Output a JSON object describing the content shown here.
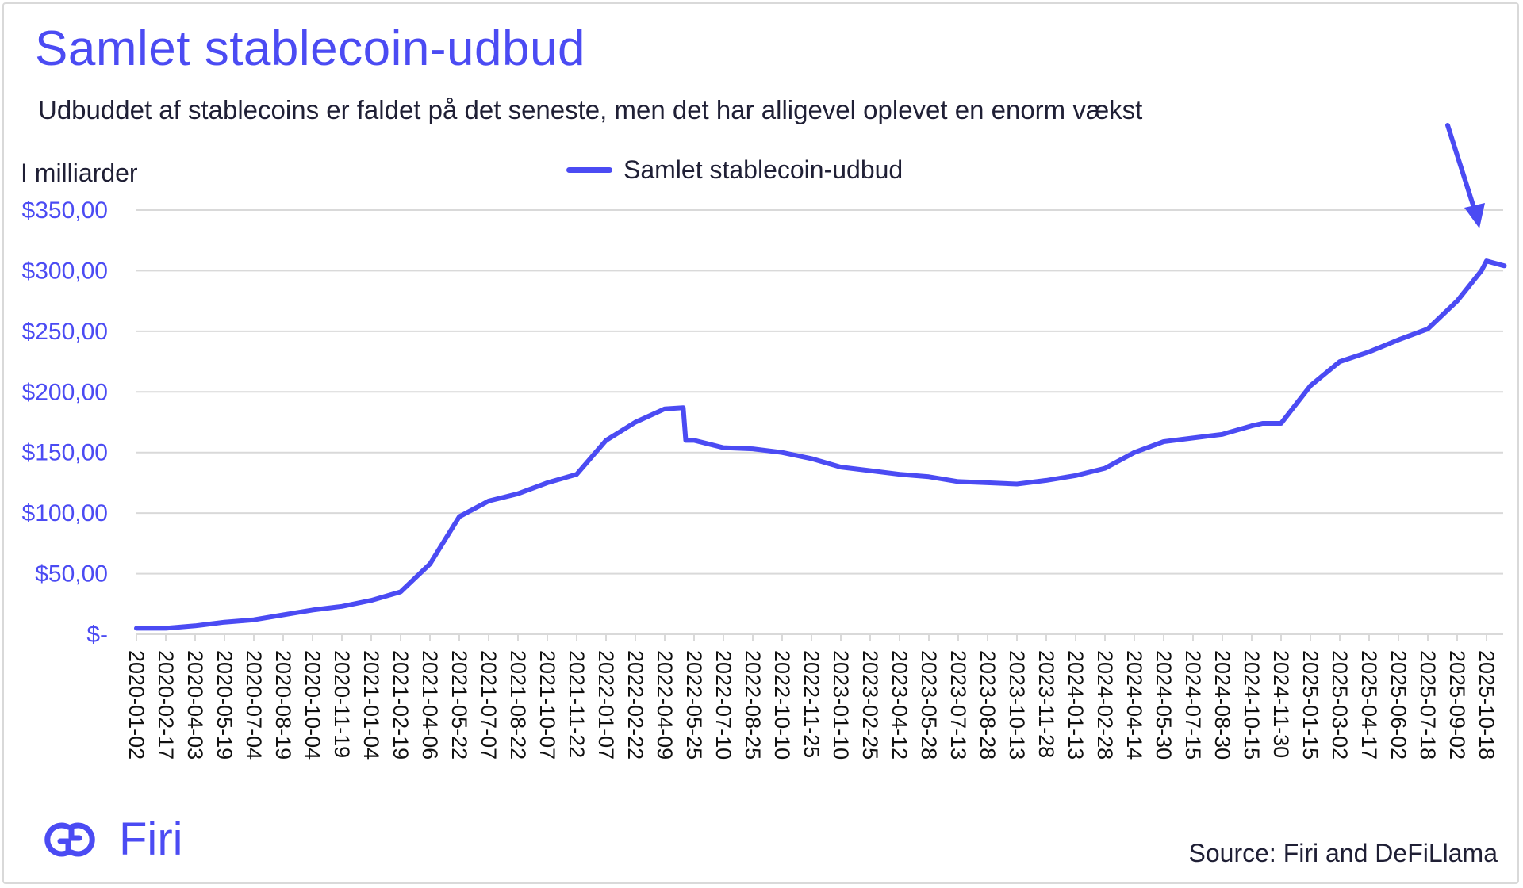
{
  "header": {
    "title": "Samlet stablecoin-udbud",
    "subtitle": "Udbuddet af stablecoins er faldet på det seneste, men det har alligevel oplevet en enorm vækst",
    "unit_label": "I milliarder"
  },
  "footer": {
    "logo_text": "Firi",
    "source": "Source: Firi and DeFiLlama"
  },
  "colors": {
    "accent": "#4b4bf3",
    "text": "#1f1f35",
    "grid": "#d9d9d9"
  },
  "chart_data": {
    "type": "line",
    "title": "Samlet stablecoin-udbud",
    "ylabel": "I milliarder",
    "ylim": [
      0,
      350
    ],
    "ytick_labels": [
      "$-",
      "$50,00",
      "$100,00",
      "$150,00",
      "$200,00",
      "$250,00",
      "$300,00",
      "$350,00"
    ],
    "ytick_values": [
      0,
      50,
      100,
      150,
      200,
      250,
      300,
      350
    ],
    "xtick_labels": [
      "2020-01-02",
      "2020-02-17",
      "2020-04-03",
      "2020-05-19",
      "2020-07-04",
      "2020-08-19",
      "2020-10-04",
      "2020-11-19",
      "2021-01-04",
      "2021-02-19",
      "2021-04-06",
      "2021-05-22",
      "2021-07-07",
      "2021-08-22",
      "2021-10-07",
      "2021-11-22",
      "2022-01-07",
      "2022-02-22",
      "2022-04-09",
      "2022-05-25",
      "2022-07-10",
      "2022-08-25",
      "2022-10-10",
      "2022-11-25",
      "2023-01-10",
      "2023-02-25",
      "2023-04-12",
      "2023-05-28",
      "2023-07-13",
      "2023-08-28",
      "2023-10-13",
      "2023-11-28",
      "2024-01-13",
      "2024-02-28",
      "2024-04-14",
      "2024-05-30",
      "2024-07-15",
      "2024-08-30",
      "2024-10-15",
      "2024-11-30",
      "2025-01-15",
      "2025-03-02",
      "2025-04-17",
      "2025-06-02",
      "2025-07-18",
      "2025-09-02",
      "2025-10-18"
    ],
    "grid": true,
    "legend_position": "top-center",
    "series": [
      {
        "name": "Samlet stablecoin-udbud",
        "color": "#4b4bf3",
        "x": [
          "2020-01-02",
          "2020-02-17",
          "2020-04-03",
          "2020-05-19",
          "2020-07-04",
          "2020-08-19",
          "2020-10-04",
          "2020-11-19",
          "2021-01-04",
          "2021-02-19",
          "2021-04-06",
          "2021-05-22",
          "2021-07-07",
          "2021-08-22",
          "2021-10-07",
          "2021-11-22",
          "2022-01-07",
          "2022-02-22",
          "2022-04-09",
          "2022-05-08",
          "2022-05-12",
          "2022-05-25",
          "2022-07-10",
          "2022-08-25",
          "2022-10-10",
          "2022-11-25",
          "2023-01-10",
          "2023-02-25",
          "2023-04-12",
          "2023-05-28",
          "2023-07-13",
          "2023-08-28",
          "2023-10-13",
          "2023-11-28",
          "2024-01-13",
          "2024-02-28",
          "2024-04-14",
          "2024-05-30",
          "2024-07-15",
          "2024-08-30",
          "2024-10-15",
          "2024-11-01",
          "2024-11-30",
          "2025-01-15",
          "2025-03-02",
          "2025-04-17",
          "2025-06-02",
          "2025-07-18",
          "2025-09-02",
          "2025-10-10",
          "2025-10-18",
          "2025-11-15"
        ],
        "y": [
          5,
          5,
          7,
          10,
          12,
          16,
          20,
          23,
          28,
          35,
          58,
          97,
          110,
          116,
          125,
          132,
          160,
          175,
          186,
          187,
          160,
          160,
          154,
          153,
          150,
          145,
          138,
          135,
          132,
          130,
          126,
          125,
          124,
          127,
          131,
          137,
          150,
          159,
          162,
          165,
          172,
          174,
          174,
          205,
          225,
          233,
          243,
          252,
          275,
          300,
          308,
          304
        ]
      }
    ]
  }
}
